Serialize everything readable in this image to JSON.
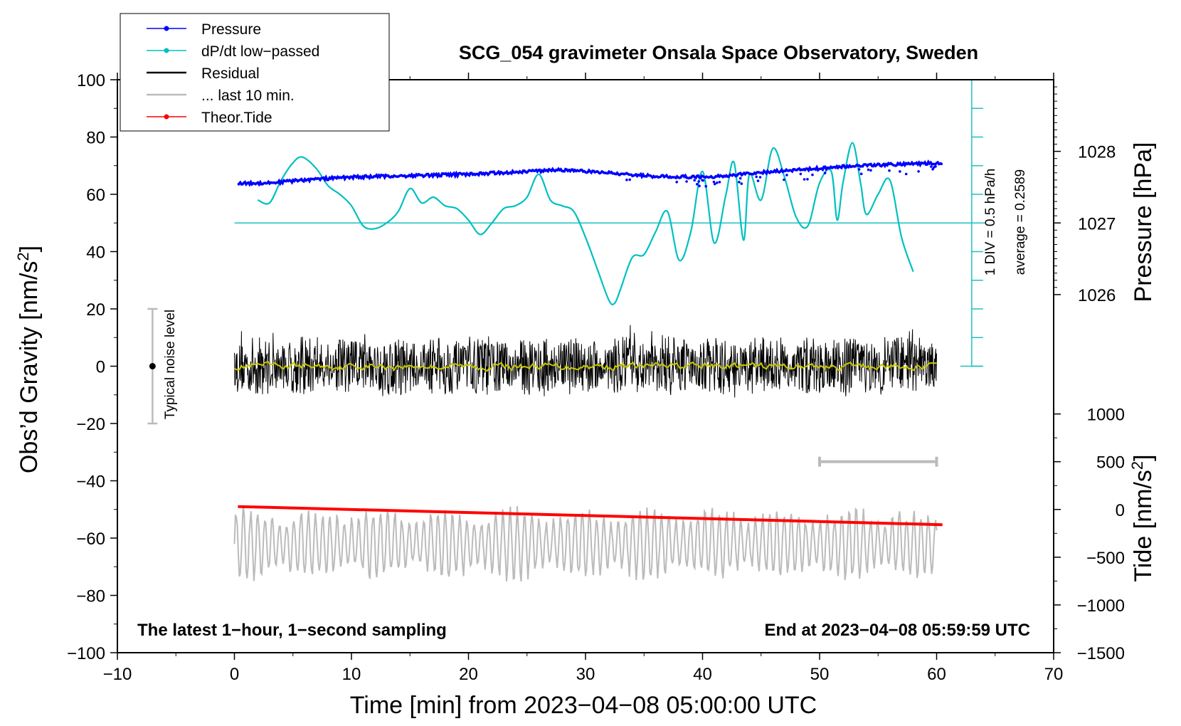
{
  "chart_data": {
    "type": "line",
    "title": "SCG_054 gravimeter Onsala Space Observatory, Sweden",
    "xlabel": "Time [min] from 2023−04−08 05:00:00 UTC",
    "ylabel": "Obs’d Gravity [nm/s",
    "ylabel_sup": "2",
    "ylabel_end": "]",
    "xlim": [
      -10,
      70
    ],
    "ylim": [
      -100,
      100
    ],
    "x_ticks": [
      -10,
      0,
      10,
      20,
      30,
      40,
      50,
      60,
      70
    ],
    "x_tick_labels": [
      "−10",
      "0",
      "10",
      "20",
      "30",
      "40",
      "50",
      "60",
      "70"
    ],
    "y_ticks": [
      -100,
      -80,
      -60,
      -40,
      -20,
      0,
      20,
      40,
      60,
      80,
      100
    ],
    "y_tick_labels": [
      "−100",
      "−80",
      "−60",
      "−40",
      "−20",
      "0",
      "20",
      "40",
      "60",
      "80",
      "100"
    ],
    "pressure_axis": {
      "label": "Pressure [hPa]",
      "ticks": [
        1026,
        1027,
        1028
      ],
      "tick_labels": [
        "1026",
        "1027",
        "1028"
      ],
      "gravity_at_1027": 50,
      "gravity_per_hpa": 25
    },
    "tide_axis": {
      "label": "Tide [nm/s",
      "label_sup": "2",
      "label_end": "]",
      "ticks": [
        -1500,
        -1000,
        -500,
        0,
        500,
        1000
      ],
      "tick_labels": [
        "−1500",
        "−1000",
        "−500",
        "0",
        "500",
        "1000"
      ],
      "gravity_at_0": -50,
      "gravity_per_unit": 0.03333
    },
    "dpdt_scale": {
      "label1": "1 DIV = 0.5 hPa/h",
      "label2": "average = 0.2589",
      "x": 63,
      "y_range": [
        0,
        100
      ],
      "baseline_y": 50
    },
    "noise_bar": {
      "label": "Typical noise level",
      "x": -7,
      "y_center": 0,
      "y_range": [
        -20,
        20
      ]
    },
    "last10_bar": {
      "x_range": [
        50,
        60
      ],
      "tide_value": 500
    },
    "legend": [
      {
        "label": "Pressure",
        "color": "#0000ff",
        "marker": true
      },
      {
        "label": "dP/dt low−passed",
        "color": "#00c0c0",
        "marker": true
      },
      {
        "label": "Residual",
        "color": "#000000",
        "marker": false
      },
      {
        "label": "... last 10 min.",
        "color": "#bbbbbb",
        "marker": false
      },
      {
        "label": "Theor.Tide",
        "color": "#ff0000",
        "marker": true
      }
    ],
    "footer_left": "The latest 1−hour, 1−second sampling",
    "footer_right": "End at 2023−04−08 05:59:59 UTC",
    "series": [
      {
        "name": "Pressure",
        "color": "#0000ff",
        "axis": "pressure_hpa",
        "x": [
          0.3,
          3,
          6,
          10,
          15,
          20,
          25,
          28,
          32,
          36,
          40,
          42,
          46,
          50,
          53,
          57,
          60.5
        ],
        "y": [
          1027.55,
          1027.56,
          1027.6,
          1027.64,
          1027.66,
          1027.68,
          1027.72,
          1027.74,
          1027.7,
          1027.65,
          1027.64,
          1027.66,
          1027.72,
          1027.76,
          1027.8,
          1027.82,
          1027.84
        ]
      },
      {
        "name": "dP/dt low-passed",
        "color": "#00c0c0",
        "axis": "gravity",
        "x": [
          2,
          3,
          4,
          5,
          5.8,
          7,
          8,
          9,
          10,
          11,
          12,
          13,
          14,
          15,
          16,
          17,
          18,
          19,
          20,
          21,
          22,
          23,
          24,
          25,
          26,
          27,
          28,
          29,
          30,
          31,
          32,
          32.5,
          33,
          34,
          35,
          36,
          37,
          38,
          39,
          40,
          41,
          42,
          42.7,
          43.5,
          44,
          45,
          46,
          47,
          48,
          49,
          50,
          51,
          51.5,
          52,
          52.8,
          53.5,
          54,
          55,
          56,
          57,
          58
        ],
        "y": [
          58,
          57,
          65,
          71,
          73,
          69,
          63,
          60,
          56,
          49,
          48,
          50,
          54,
          62,
          57,
          59,
          56,
          55,
          51,
          46,
          50,
          55,
          56,
          59,
          67,
          58,
          56,
          54,
          45,
          34,
          23,
          22,
          27,
          38,
          39,
          47,
          54,
          37,
          47,
          68,
          43,
          60,
          71,
          44,
          67,
          58,
          76,
          66,
          52,
          49,
          64,
          68,
          51,
          64,
          78,
          64,
          53,
          60,
          65,
          45,
          33
        ]
      },
      {
        "name": "Theor.Tide",
        "color": "#ff0000",
        "axis": "tide",
        "x": [
          0.3,
          60.5
        ],
        "y": [
          30,
          -160
        ]
      }
    ]
  }
}
